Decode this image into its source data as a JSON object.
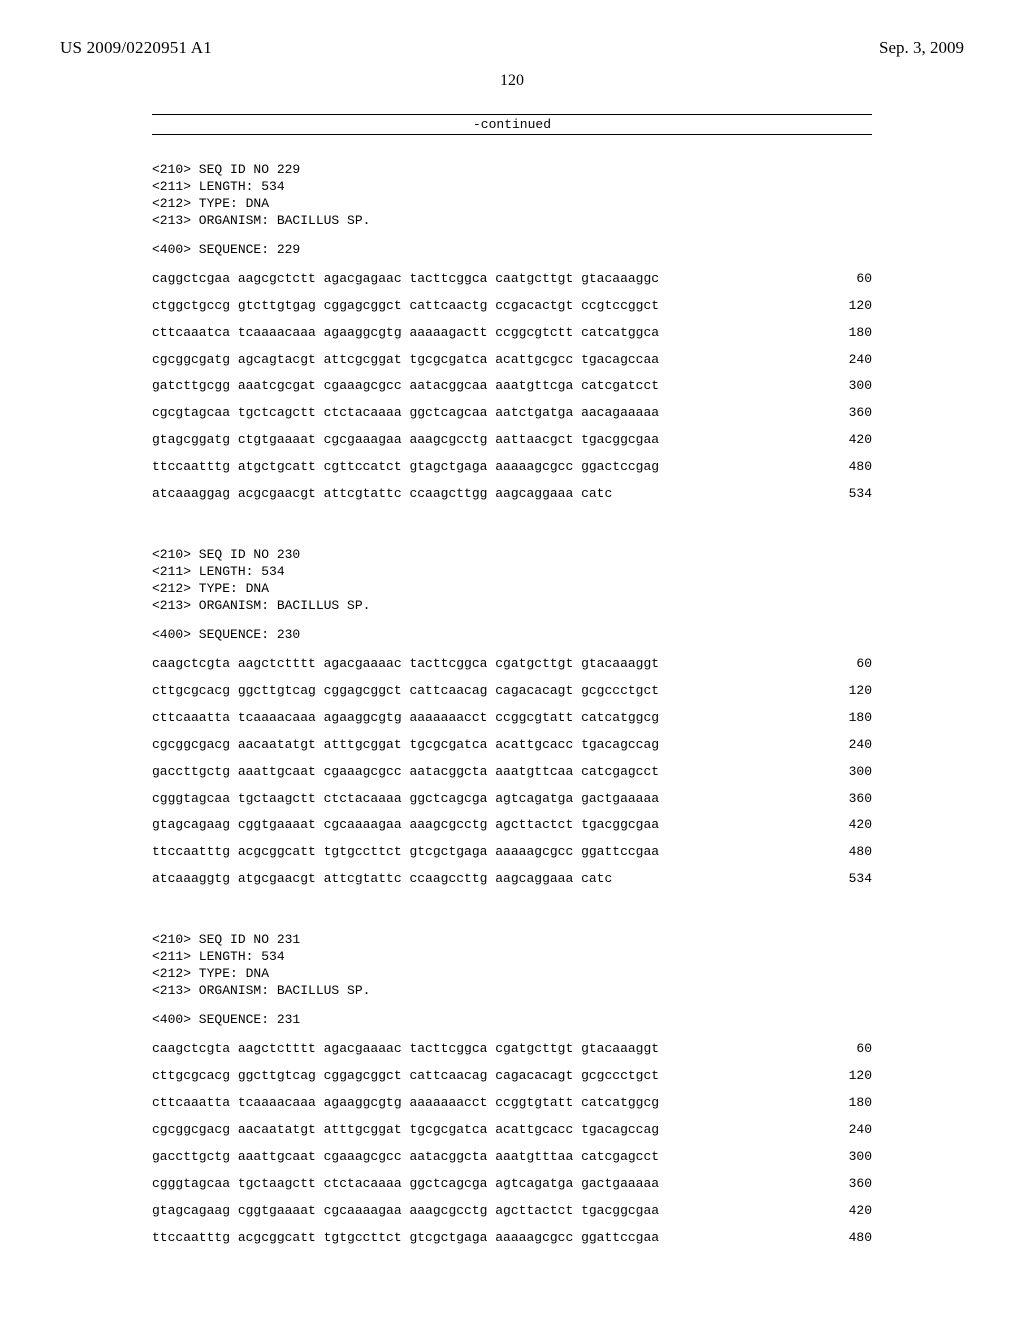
{
  "header": {
    "publication_no": "US 2009/0220951 A1",
    "publication_date": "Sep. 3, 2009",
    "page_number": "120",
    "continued_label": "-continued"
  },
  "sequences": [
    {
      "meta": [
        "<210> SEQ ID NO 229",
        "<211> LENGTH: 534",
        "<212> TYPE: DNA",
        "<213> ORGANISM: BACILLUS SP."
      ],
      "label": "<400> SEQUENCE: 229",
      "rows": [
        {
          "g": [
            "caggctcgaa",
            "aagcgctctt",
            "agacgagaac",
            "tacttcggca",
            "caatgcttgt",
            "gtacaaaggc"
          ],
          "p": "60"
        },
        {
          "g": [
            "ctggctgccg",
            "gtcttgtgag",
            "cggagcggct",
            "cattcaactg",
            "ccgacactgt",
            "ccgtccggct"
          ],
          "p": "120"
        },
        {
          "g": [
            "cttcaaatca",
            "tcaaaacaaa",
            "agaaggcgtg",
            "aaaaagactt",
            "ccggcgtctt",
            "catcatggca"
          ],
          "p": "180"
        },
        {
          "g": [
            "cgcggcgatg",
            "agcagtacgt",
            "attcgcggat",
            "tgcgcgatca",
            "acattgcgcc",
            "tgacagccaa"
          ],
          "p": "240"
        },
        {
          "g": [
            "gatcttgcgg",
            "aaatcgcgat",
            "cgaaagcgcc",
            "aatacggcaa",
            "aaatgttcga",
            "catcgatcct"
          ],
          "p": "300"
        },
        {
          "g": [
            "cgcgtagcaa",
            "tgctcagctt",
            "ctctacaaaa",
            "ggctcagcaa",
            "aatctgatga",
            "aacagaaaaa"
          ],
          "p": "360"
        },
        {
          "g": [
            "gtagcggatg",
            "ctgtgaaaat",
            "cgcgaaagaa",
            "aaagcgcctg",
            "aattaacgct",
            "tgacggcgaa"
          ],
          "p": "420"
        },
        {
          "g": [
            "ttccaatttg",
            "atgctgcatt",
            "cgttccatct",
            "gtagctgaga",
            "aaaaagcgcc",
            "ggactccgag"
          ],
          "p": "480"
        },
        {
          "g": [
            "atcaaaggag",
            "acgcgaacgt",
            "attcgtattc",
            "ccaagcttgg",
            "aagcaggaaa",
            "catc"
          ],
          "p": "534"
        }
      ]
    },
    {
      "meta": [
        "<210> SEQ ID NO 230",
        "<211> LENGTH: 534",
        "<212> TYPE: DNA",
        "<213> ORGANISM: BACILLUS SP."
      ],
      "label": "<400> SEQUENCE: 230",
      "rows": [
        {
          "g": [
            "caagctcgta",
            "aagctctttt",
            "agacgaaaac",
            "tacttcggca",
            "cgatgcttgt",
            "gtacaaaggt"
          ],
          "p": "60"
        },
        {
          "g": [
            "cttgcgcacg",
            "ggcttgtcag",
            "cggagcggct",
            "cattcaacag",
            "cagacacagt",
            "gcgccctgct"
          ],
          "p": "120"
        },
        {
          "g": [
            "cttcaaatta",
            "tcaaaacaaa",
            "agaaggcgtg",
            "aaaaaaacct",
            "ccggcgtatt",
            "catcatggcg"
          ],
          "p": "180"
        },
        {
          "g": [
            "cgcggcgacg",
            "aacaatatgt",
            "atttgcggat",
            "tgcgcgatca",
            "acattgcacc",
            "tgacagccag"
          ],
          "p": "240"
        },
        {
          "g": [
            "gaccttgctg",
            "aaattgcaat",
            "cgaaagcgcc",
            "aatacggcta",
            "aaatgttcaa",
            "catcgagcct"
          ],
          "p": "300"
        },
        {
          "g": [
            "cgggtagcaa",
            "tgctaagctt",
            "ctctacaaaa",
            "ggctcagcga",
            "agtcagatga",
            "gactgaaaaa"
          ],
          "p": "360"
        },
        {
          "g": [
            "gtagcagaag",
            "cggtgaaaat",
            "cgcaaaagaa",
            "aaagcgcctg",
            "agcttactct",
            "tgacggcgaa"
          ],
          "p": "420"
        },
        {
          "g": [
            "ttccaatttg",
            "acgcggcatt",
            "tgtgccttct",
            "gtcgctgaga",
            "aaaaagcgcc",
            "ggattccgaa"
          ],
          "p": "480"
        },
        {
          "g": [
            "atcaaaggtg",
            "atgcgaacgt",
            "attcgtattc",
            "ccaagccttg",
            "aagcaggaaa",
            "catc"
          ],
          "p": "534"
        }
      ]
    },
    {
      "meta": [
        "<210> SEQ ID NO 231",
        "<211> LENGTH: 534",
        "<212> TYPE: DNA",
        "<213> ORGANISM: BACILLUS SP."
      ],
      "label": "<400> SEQUENCE: 231",
      "rows": [
        {
          "g": [
            "caagctcgta",
            "aagctctttt",
            "agacgaaaac",
            "tacttcggca",
            "cgatgcttgt",
            "gtacaaaggt"
          ],
          "p": "60"
        },
        {
          "g": [
            "cttgcgcacg",
            "ggcttgtcag",
            "cggagcggct",
            "cattcaacag",
            "cagacacagt",
            "gcgccctgct"
          ],
          "p": "120"
        },
        {
          "g": [
            "cttcaaatta",
            "tcaaaacaaa",
            "agaaggcgtg",
            "aaaaaaacct",
            "ccggtgtatt",
            "catcatggcg"
          ],
          "p": "180"
        },
        {
          "g": [
            "cgcggcgacg",
            "aacaatatgt",
            "atttgcggat",
            "tgcgcgatca",
            "acattgcacc",
            "tgacagccag"
          ],
          "p": "240"
        },
        {
          "g": [
            "gaccttgctg",
            "aaattgcaat",
            "cgaaagcgcc",
            "aatacggcta",
            "aaatgtttaa",
            "catcgagcct"
          ],
          "p": "300"
        },
        {
          "g": [
            "cgggtagcaa",
            "tgctaagctt",
            "ctctacaaaa",
            "ggctcagcga",
            "agtcagatga",
            "gactgaaaaa"
          ],
          "p": "360"
        },
        {
          "g": [
            "gtagcagaag",
            "cggtgaaaat",
            "cgcaaaagaa",
            "aaagcgcctg",
            "agcttactct",
            "tgacggcgaa"
          ],
          "p": "420"
        },
        {
          "g": [
            "ttccaatttg",
            "acgcggcatt",
            "tgtgccttct",
            "gtcgctgaga",
            "aaaaagcgcc",
            "ggattccgaa"
          ],
          "p": "480"
        }
      ]
    }
  ]
}
